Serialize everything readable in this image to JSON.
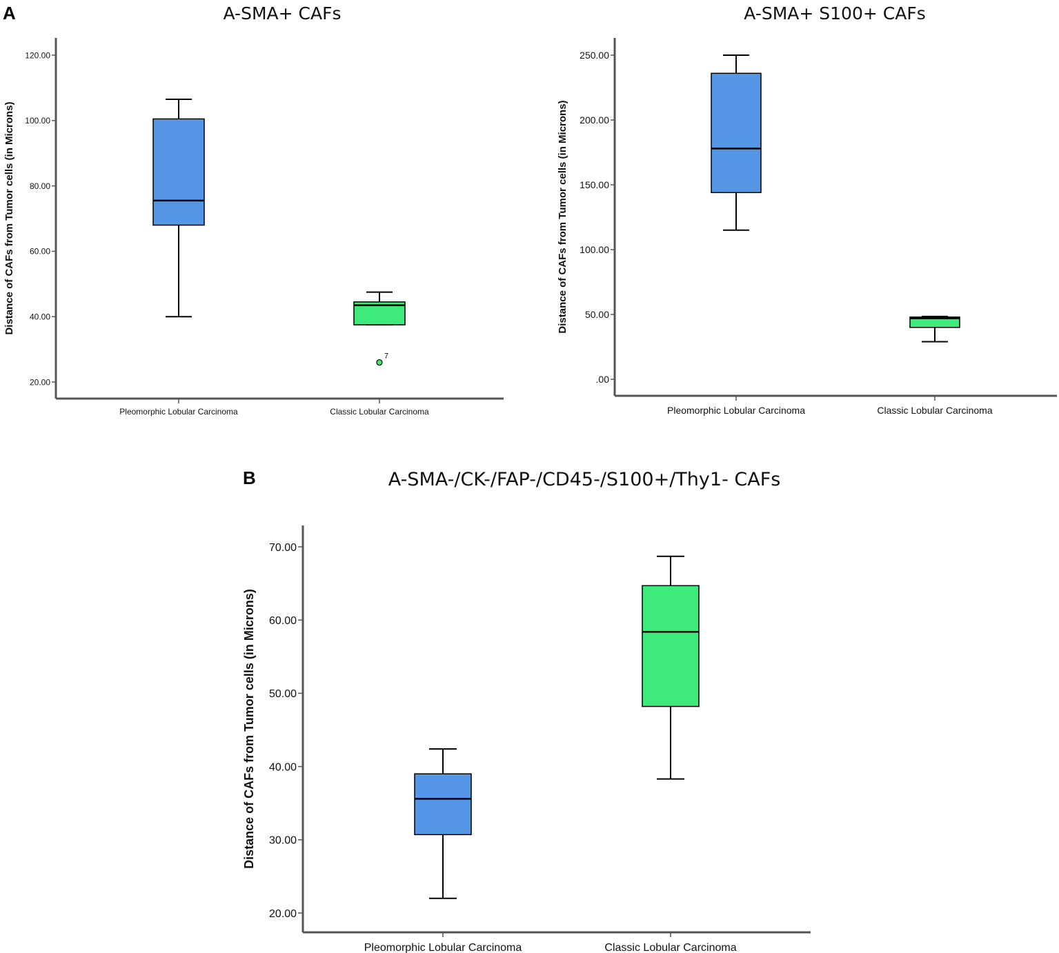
{
  "panel_labels": {
    "a": "A",
    "b": "B"
  },
  "colors": {
    "pleomorphic": "#5596e6",
    "classic": "#3dea7a",
    "axis": "#555555",
    "stroke": "#000000"
  },
  "chart_data": [
    {
      "type": "box",
      "title": "A-SMA+ CAFs",
      "ylabel": "Distance of CAFs from Tumor cells (in Microns)",
      "ylim": [
        15,
        125
      ],
      "yticks": [
        20,
        40,
        60,
        80,
        100,
        120
      ],
      "ytick_labels": [
        "20.00",
        "40.00",
        "60.00",
        "80.00",
        "100.00",
        "120.00"
      ],
      "categories": [
        "Pleomorphic Lobular Carcinoma",
        "Classic Lobular Carcinoma"
      ],
      "boxes": [
        {
          "min": 40,
          "q1": 68,
          "median": 75.5,
          "q3": 100.5,
          "max": 106.5,
          "color": "#5596e6"
        },
        {
          "min": 37.5,
          "q1": 37.5,
          "median": 43.5,
          "q3": 44.5,
          "max": 47.5,
          "color": "#3dea7a",
          "outliers": [
            {
              "value": 26,
              "label": "7"
            }
          ]
        }
      ]
    },
    {
      "type": "box",
      "title": "A-SMA+ S100+ CAFs",
      "ylabel": "Distance of CAFs from Tumor cells (in Microns)",
      "ylim": [
        -12,
        262
      ],
      "yticks": [
        0,
        50,
        100,
        150,
        200,
        250
      ],
      "ytick_labels": [
        ".00",
        "50.00",
        "100.00",
        "150.00",
        "200.00",
        "250.00"
      ],
      "categories": [
        "Pleomorphic Lobular Carcinoma",
        "Classic Lobular Carcinoma"
      ],
      "boxes": [
        {
          "min": 115,
          "q1": 144,
          "median": 178,
          "q3": 236,
          "max": 250,
          "color": "#5596e6"
        },
        {
          "min": 29,
          "q1": 40,
          "median": 47,
          "q3": 48,
          "max": 48.5,
          "color": "#3dea7a"
        }
      ]
    },
    {
      "type": "box",
      "title": "A-SMA-/CK-/FAP-/CD45-/S100+/Thy1-  CAFs",
      "ylabel": "Distance of CAFs from Tumor cells (in Microns)",
      "ylim": [
        17,
        73
      ],
      "yticks": [
        20,
        30,
        40,
        50,
        60,
        70
      ],
      "ytick_labels": [
        "20.00",
        "30.00",
        "40.00",
        "50.00",
        "60.00",
        "70.00"
      ],
      "categories": [
        "Pleomorphic Lobular Carcinoma",
        "Classic Lobular Carcinoma"
      ],
      "boxes": [
        {
          "min": 22,
          "q1": 30.7,
          "median": 35.6,
          "q3": 39,
          "max": 42.4,
          "color": "#5596e6"
        },
        {
          "min": 38.3,
          "q1": 48.2,
          "median": 58.4,
          "q3": 64.7,
          "max": 68.7,
          "color": "#3dea7a"
        }
      ]
    }
  ]
}
